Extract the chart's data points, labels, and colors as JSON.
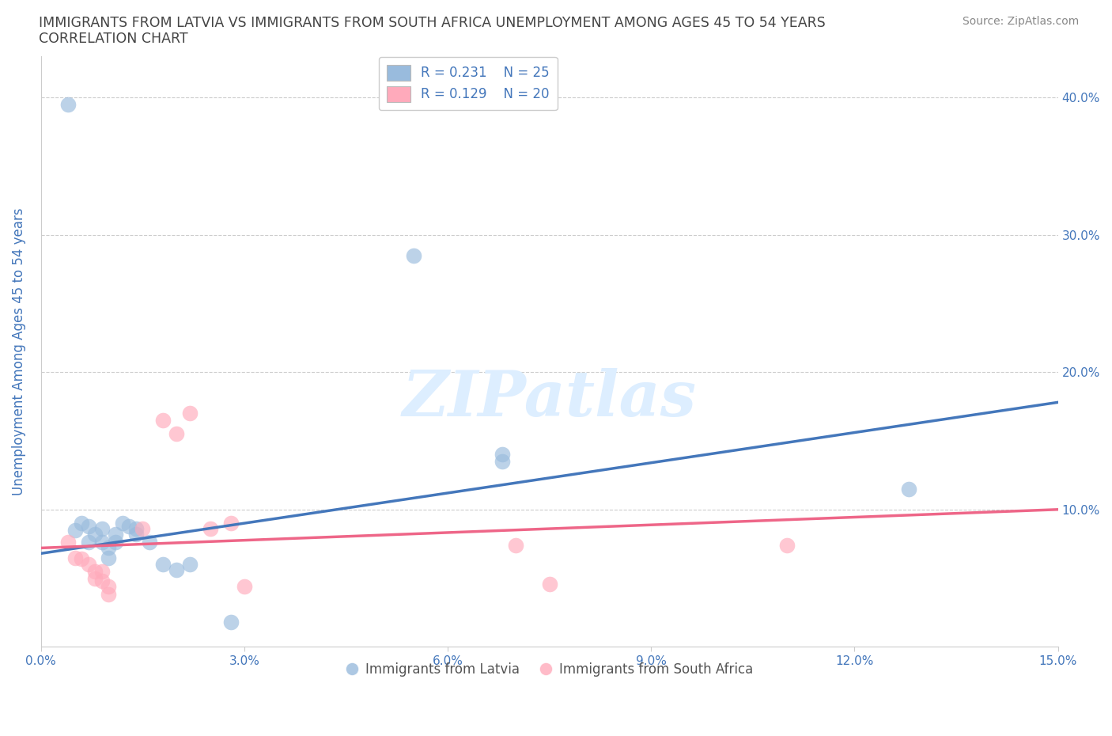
{
  "title_line1": "IMMIGRANTS FROM LATVIA VS IMMIGRANTS FROM SOUTH AFRICA UNEMPLOYMENT AMONG AGES 45 TO 54 YEARS",
  "title_line2": "CORRELATION CHART",
  "source_text": "Source: ZipAtlas.com",
  "ylabel": "Unemployment Among Ages 45 to 54 years",
  "xlim": [
    0.0,
    0.15
  ],
  "ylim": [
    0.0,
    0.43
  ],
  "xticks": [
    0.0,
    0.03,
    0.06,
    0.09,
    0.12,
    0.15
  ],
  "yticks": [
    0.0,
    0.1,
    0.2,
    0.3,
    0.4
  ],
  "right_ytick_labels": [
    "",
    "10.0%",
    "20.0%",
    "30.0%",
    "40.0%"
  ],
  "xtick_labels": [
    "0.0%",
    "3.0%",
    "6.0%",
    "9.0%",
    "12.0%",
    "15.0%"
  ],
  "legend_label1": "Immigrants from Latvia",
  "legend_label2": "Immigrants from South Africa",
  "blue_color": "#99BBDD",
  "pink_color": "#FFAABB",
  "blue_line_color": "#4477BB",
  "pink_line_color": "#EE6688",
  "watermark": "ZIPatlas",
  "watermark_color": "#DDEEFF",
  "title_color": "#444444",
  "axis_label_color": "#4477BB",
  "tick_color": "#4477BB",
  "source_color": "#888888",
  "legend_text_color": "#4477BB",
  "bottom_legend_text_color": "#555555",
  "scatter_blue": [
    [
      0.004,
      0.395
    ],
    [
      0.005,
      0.085
    ],
    [
      0.006,
      0.09
    ],
    [
      0.007,
      0.088
    ],
    [
      0.007,
      0.076
    ],
    [
      0.008,
      0.082
    ],
    [
      0.009,
      0.086
    ],
    [
      0.009,
      0.076
    ],
    [
      0.01,
      0.065
    ],
    [
      0.01,
      0.072
    ],
    [
      0.011,
      0.082
    ],
    [
      0.011,
      0.076
    ],
    [
      0.012,
      0.09
    ],
    [
      0.013,
      0.088
    ],
    [
      0.014,
      0.086
    ],
    [
      0.014,
      0.082
    ],
    [
      0.016,
      0.076
    ],
    [
      0.018,
      0.06
    ],
    [
      0.02,
      0.056
    ],
    [
      0.022,
      0.06
    ],
    [
      0.028,
      0.018
    ],
    [
      0.055,
      0.285
    ],
    [
      0.068,
      0.14
    ],
    [
      0.068,
      0.135
    ],
    [
      0.128,
      0.115
    ]
  ],
  "scatter_pink": [
    [
      0.004,
      0.076
    ],
    [
      0.005,
      0.065
    ],
    [
      0.006,
      0.064
    ],
    [
      0.007,
      0.06
    ],
    [
      0.008,
      0.055
    ],
    [
      0.008,
      0.05
    ],
    [
      0.009,
      0.055
    ],
    [
      0.009,
      0.048
    ],
    [
      0.01,
      0.044
    ],
    [
      0.01,
      0.038
    ],
    [
      0.015,
      0.086
    ],
    [
      0.018,
      0.165
    ],
    [
      0.02,
      0.155
    ],
    [
      0.022,
      0.17
    ],
    [
      0.025,
      0.086
    ],
    [
      0.028,
      0.09
    ],
    [
      0.03,
      0.044
    ],
    [
      0.07,
      0.074
    ],
    [
      0.075,
      0.046
    ],
    [
      0.11,
      0.074
    ]
  ],
  "blue_trendline_x": [
    0.0,
    0.15
  ],
  "blue_trendline_y": [
    0.068,
    0.178
  ],
  "pink_trendline_x": [
    0.0,
    0.15
  ],
  "pink_trendline_y": [
    0.072,
    0.1
  ]
}
